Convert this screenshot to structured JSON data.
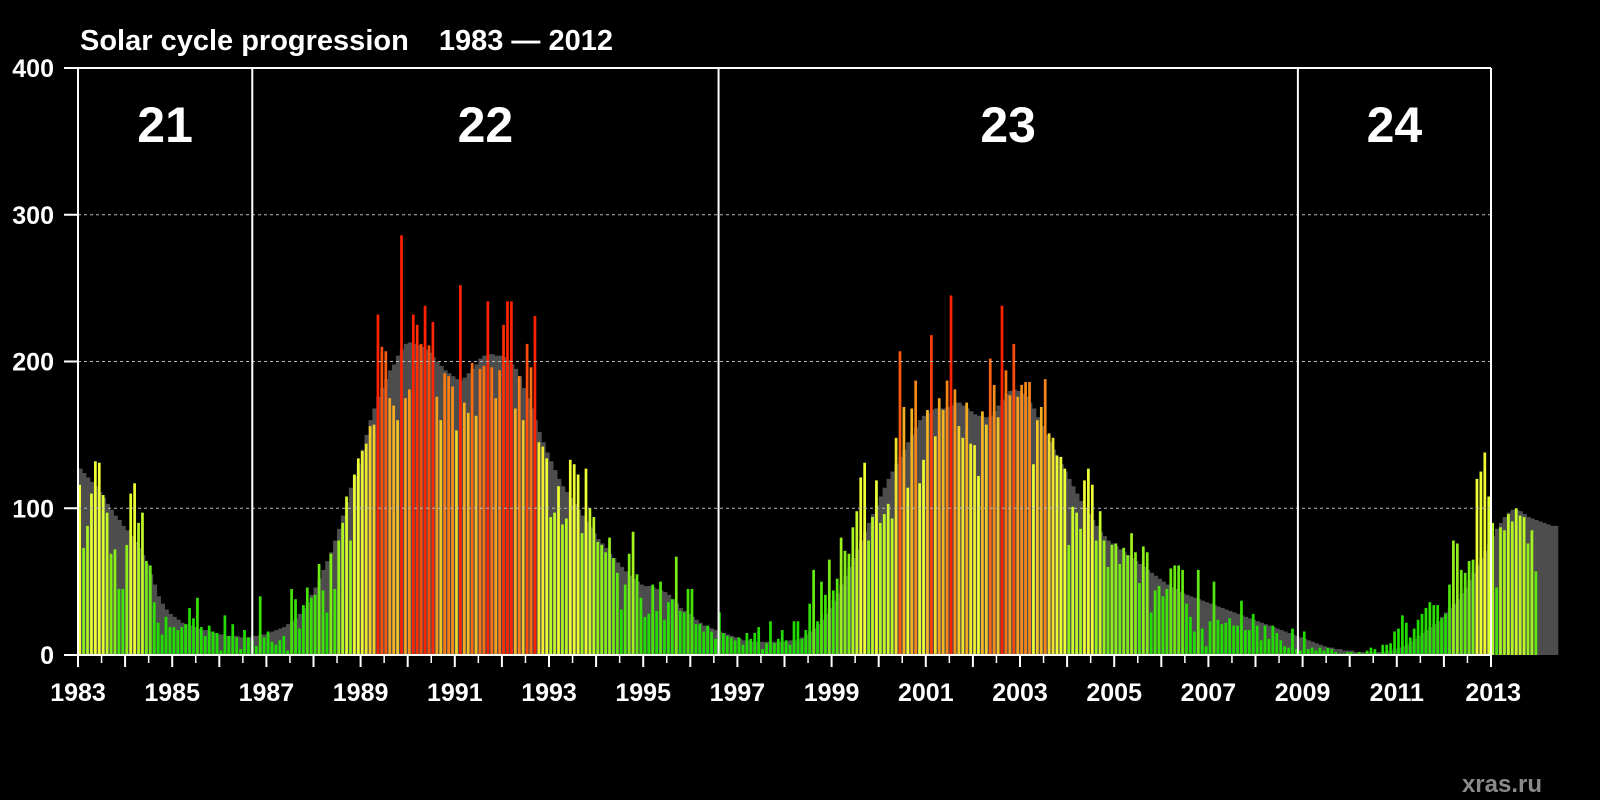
{
  "chart_data": {
    "type": "bar",
    "title": "Solar cycle progression",
    "subtitle": "1983 — 2012",
    "xlabel": "",
    "ylabel": "",
    "xlim": [
      1983,
      2013
    ],
    "ylim": [
      0,
      400
    ],
    "x_ticks": [
      "1983",
      "1985",
      "1987",
      "1989",
      "1991",
      "1993",
      "1995",
      "1997",
      "1999",
      "2001",
      "2003",
      "2005",
      "2007",
      "2009",
      "2011",
      "2013"
    ],
    "y_ticks": [
      "0",
      "100",
      "200",
      "300",
      "400"
    ],
    "grid_y": [
      100,
      200,
      300
    ],
    "cycles": [
      {
        "label": "21",
        "start": 1983.0,
        "end": 1986.7
      },
      {
        "label": "22",
        "start": 1986.7,
        "end": 1996.6
      },
      {
        "label": "23",
        "start": 1996.6,
        "end": 2008.9
      },
      {
        "label": "24",
        "start": 2008.9,
        "end": 2013.0
      }
    ],
    "series": [
      {
        "name": "monthly",
        "sampling": "monthly from 1983-01",
        "values": [
          116,
          73,
          88,
          110,
          132,
          131,
          109,
          97,
          69,
          72,
          45,
          45,
          75,
          110,
          117,
          90,
          97,
          64,
          61,
          36,
          22,
          14,
          26,
          19,
          19,
          17,
          19,
          21,
          32,
          25,
          39,
          19,
          13,
          20,
          16,
          15,
          3,
          27,
          13,
          21,
          12,
          4,
          17,
          12,
          10,
          6,
          40,
          12,
          16,
          9,
          7,
          10,
          13,
          3,
          45,
          38,
          18,
          34,
          46,
          39,
          41,
          62,
          44,
          29,
          69,
          45,
          78,
          90,
          108,
          78,
          123,
          134,
          139,
          144,
          156,
          157,
          232,
          210,
          207,
          175,
          170,
          160,
          286,
          175,
          181,
          232,
          225,
          212,
          238,
          211,
          227,
          176,
          160,
          192,
          190,
          183,
          153,
          252,
          172,
          165,
          199,
          163,
          195,
          197,
          241,
          196,
          175,
          194,
          225,
          241,
          241,
          168,
          190,
          160,
          212,
          196,
          231,
          145,
          142,
          134,
          94,
          97,
          115,
          89,
          93,
          133,
          130,
          123,
          83,
          127,
          100,
          94,
          77,
          75,
          70,
          80,
          66,
          56,
          31,
          48,
          69,
          84,
          55,
          39,
          26,
          28,
          48,
          30,
          50,
          24,
          36,
          38,
          67,
          30,
          29,
          45,
          45,
          21,
          21,
          16,
          20,
          16,
          11,
          29,
          15,
          13,
          12,
          10,
          12,
          7,
          15,
          11,
          15,
          19,
          4,
          8,
          23,
          8,
          11,
          17,
          10,
          7,
          23,
          23,
          11,
          17,
          35,
          58,
          23,
          50,
          41,
          65,
          44,
          52,
          80,
          71,
          69,
          87,
          98,
          121,
          131,
          78,
          94,
          119,
          90,
          96,
          103,
          93,
          148,
          207,
          169,
          114,
          168,
          187,
          117,
          133,
          167,
          218,
          149,
          175,
          167,
          187,
          245,
          181,
          156,
          148,
          172,
          144,
          143,
          122,
          166,
          157,
          202,
          184,
          162,
          238,
          194,
          177,
          212,
          176,
          184,
          186,
          186,
          130,
          160,
          169,
          188,
          151,
          148,
          136,
          135,
          127,
          75,
          101,
          97,
          86,
          119,
          127,
          116,
          78,
          98,
          78,
          60,
          75,
          76,
          62,
          73,
          68,
          83,
          70,
          49,
          74,
          70,
          29,
          44,
          47,
          40,
          45,
          59,
          61,
          61,
          58,
          35,
          26,
          16,
          58,
          18,
          6,
          23,
          50,
          24,
          21,
          22,
          25,
          20,
          20,
          37,
          17,
          17,
          28,
          20,
          10,
          20,
          11,
          20,
          15,
          10,
          6,
          5,
          18,
          4,
          3,
          16,
          4,
          5,
          3,
          5,
          3,
          5,
          4,
          2,
          1,
          1,
          2,
          2,
          1,
          2,
          1,
          3,
          5,
          4,
          1,
          7,
          7,
          8,
          16,
          18,
          27,
          22,
          12,
          18,
          24,
          28,
          32,
          36,
          34,
          34,
          25,
          28,
          48,
          78,
          76,
          58,
          56,
          64,
          65,
          120,
          125,
          138,
          108,
          90,
          46,
          87,
          85,
          96,
          91,
          100,
          95,
          94,
          76,
          85,
          57
        ]
      },
      {
        "name": "smoothed",
        "sampling": "monthly from 1983-01",
        "values": [
          127,
          124,
          121,
          118,
          115,
          111,
          107,
          103,
          99,
          95,
          92,
          88,
          85,
          81,
          77,
          73,
          68,
          62,
          55,
          48,
          40,
          35,
          31,
          28,
          26,
          24,
          22,
          21,
          20,
          19,
          18,
          17,
          17,
          16,
          15,
          14,
          14,
          13,
          13,
          13,
          13,
          12,
          12,
          12,
          13,
          13,
          14,
          14,
          15,
          16,
          17,
          18,
          19,
          21,
          23,
          25,
          28,
          32,
          36,
          41,
          46,
          52,
          58,
          64,
          70,
          78,
          86,
          95,
          104,
          114,
          122,
          130,
          140,
          150,
          160,
          168,
          176,
          182,
          188,
          194,
          198,
          204,
          208,
          212,
          213,
          212,
          211,
          210,
          208,
          206,
          203,
          200,
          197,
          194,
          192,
          190,
          188,
          187,
          189,
          192,
          195,
          198,
          202,
          204,
          205,
          205,
          204,
          204,
          203,
          201,
          198,
          195,
          190,
          182,
          175,
          168,
          160,
          152,
          145,
          138,
          132,
          126,
          120,
          115,
          111,
          107,
          103,
          99,
          95,
          91,
          87,
          83,
          79,
          76,
          73,
          69,
          66,
          63,
          60,
          57,
          54,
          52,
          50,
          48,
          47,
          47,
          46,
          45,
          44,
          43,
          41,
          38,
          35,
          32,
          30,
          28,
          26,
          24,
          22,
          20,
          19,
          18,
          17,
          16,
          15,
          14,
          13,
          12,
          11,
          10,
          10,
          9,
          9,
          9,
          9,
          9,
          9,
          9,
          9,
          9,
          9,
          10,
          10,
          11,
          12,
          14,
          16,
          18,
          21,
          24,
          28,
          32,
          37,
          42,
          48,
          54,
          60,
          66,
          72,
          78,
          84,
          90,
          96,
          102,
          108,
          114,
          120,
          125,
          130,
          135,
          140,
          145,
          150,
          155,
          160,
          163,
          165,
          167,
          168,
          168,
          168,
          169,
          170,
          172,
          172,
          170,
          168,
          166,
          164,
          163,
          162,
          162,
          163,
          166,
          170,
          174,
          178,
          180,
          181,
          180,
          178,
          176,
          172,
          168,
          162,
          156,
          150,
          145,
          140,
          135,
          130,
          125,
          120,
          115,
          110,
          105,
          100,
          96,
          92,
          88,
          84,
          81,
          78,
          76,
          74,
          72,
          70,
          68,
          66,
          64,
          62,
          60,
          58,
          56,
          54,
          52,
          50,
          48,
          46,
          45,
          43,
          42,
          41,
          40,
          39,
          38,
          37,
          36,
          35,
          34,
          33,
          32,
          31,
          30,
          29,
          28,
          27,
          26,
          25,
          24,
          23,
          22,
          21,
          20,
          19,
          18,
          17,
          16,
          15,
          14,
          13,
          12,
          11,
          10,
          9,
          8,
          7,
          6,
          5,
          5,
          4,
          4,
          3,
          3,
          3,
          2,
          2,
          2,
          2,
          2,
          2,
          2,
          2,
          3,
          3,
          4,
          5,
          6,
          7,
          9,
          11,
          13,
          15,
          17,
          19,
          21,
          23,
          26,
          29,
          32,
          35,
          38,
          42,
          46,
          51,
          56,
          61,
          66,
          71,
          76,
          81,
          86,
          90,
          94,
          97,
          99,
          99,
          98,
          96,
          94,
          93,
          92,
          91,
          90,
          89,
          88,
          88
        ]
      }
    ],
    "colors": {
      "background": "#000000",
      "smoothed": "#4d4d4d",
      "low": "#22dd00",
      "mid": "#eeff33",
      "high": "#ff2200",
      "grid": "#bbbbbb",
      "text": "#ffffff",
      "watermark": "#8a8a8a"
    },
    "grid": true
  },
  "watermark": "xras.ru"
}
